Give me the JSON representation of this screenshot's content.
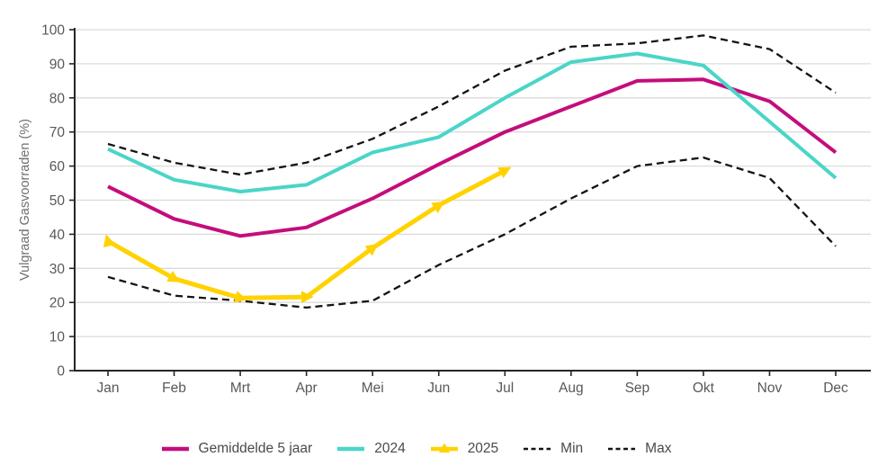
{
  "chart_data": {
    "type": "line",
    "title": "",
    "xlabel": "",
    "ylabel": "Vulgraad Gasvoorraden (%)",
    "ylim": [
      0,
      100
    ],
    "yticks": [
      0,
      10,
      20,
      30,
      40,
      50,
      60,
      70,
      80,
      90,
      100
    ],
    "categories": [
      "Jan",
      "Feb",
      "Mrt",
      "Apr",
      "Mei",
      "Jun",
      "Jul",
      "Aug",
      "Sep",
      "Okt",
      "Nov",
      "Dec"
    ],
    "grid": "horizontal",
    "legend_position": "bottom",
    "series": [
      {
        "name": "Gemiddelde 5 jaar",
        "color": "#C40D7C",
        "style": "solid",
        "width": 4,
        "values": [
          54,
          44.5,
          39.5,
          42,
          50.5,
          60.5,
          70,
          77.5,
          85,
          85.4,
          79,
          64
        ]
      },
      {
        "name": "2024",
        "color": "#4AD5C8",
        "style": "solid",
        "width": 4,
        "values": [
          65,
          56,
          52.5,
          54.5,
          64,
          68.5,
          80,
          90.5,
          93,
          89.5,
          73,
          56.5
        ]
      },
      {
        "name": "2025",
        "color": "#FFD200",
        "style": "solid",
        "width": 5,
        "marker": "arrow-triangle",
        "values": [
          38,
          27,
          21.3,
          21.6,
          36,
          48.5,
          58.7,
          null,
          null,
          null,
          null,
          null
        ]
      },
      {
        "name": "Min",
        "color": "#141414",
        "style": "dashed",
        "width": 2.3,
        "values": [
          27.5,
          22,
          20.5,
          18.5,
          20.5,
          31,
          40,
          50.5,
          60,
          62.5,
          56.5,
          36.5
        ]
      },
      {
        "name": "Max",
        "color": "#141414",
        "style": "dashed",
        "width": 2.3,
        "values": [
          66.5,
          61,
          57.5,
          61,
          68,
          77.5,
          88,
          95,
          96,
          98.3,
          94.3,
          81.5
        ]
      }
    ],
    "colors": {
      "gridline": "#dbdbdb",
      "axis": "#262626",
      "tick_text": "#58585a"
    }
  }
}
